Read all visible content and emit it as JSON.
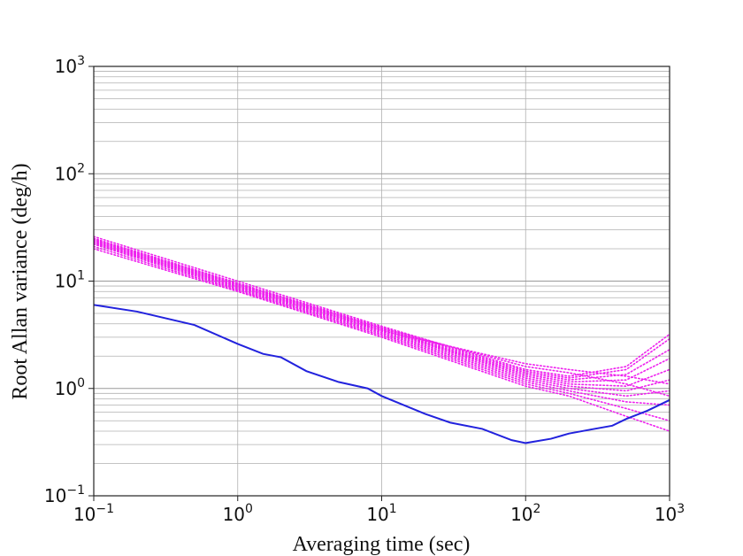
{
  "chart_data": {
    "type": "line",
    "title": "",
    "xlabel": "Averaging time (sec)",
    "ylabel": "Root Allan variance  (deg/h)",
    "xscale": "log",
    "yscale": "log",
    "xlim": [
      0.1,
      1000
    ],
    "ylim": [
      0.1,
      1000
    ],
    "grid": true,
    "legend": "none",
    "x_ticks": [
      {
        "base": "10",
        "exp": "−1",
        "value": 0.1
      },
      {
        "base": "10",
        "exp": "0",
        "value": 1
      },
      {
        "base": "10",
        "exp": "1",
        "value": 10
      },
      {
        "base": "10",
        "exp": "2",
        "value": 100
      },
      {
        "base": "10",
        "exp": "3",
        "value": 1000
      }
    ],
    "y_ticks": [
      {
        "base": "10",
        "exp": "−1",
        "value": 0.1
      },
      {
        "base": "10",
        "exp": "0",
        "value": 1
      },
      {
        "base": "10",
        "exp": "1",
        "value": 10
      },
      {
        "base": "10",
        "exp": "2",
        "value": 100
      },
      {
        "base": "10",
        "exp": "3",
        "value": 1000
      }
    ],
    "colors": {
      "solid": "#2222dd",
      "dotted": "#ee22ee",
      "grid": "#b0b0b0",
      "frame": "#222222"
    },
    "solid_series": {
      "style": "solid",
      "x": [
        0.1,
        0.2,
        0.5,
        1,
        1.5,
        2,
        3,
        5,
        8,
        10,
        20,
        30,
        50,
        80,
        100,
        150,
        200,
        300,
        400,
        500,
        700,
        1000
      ],
      "y": [
        6,
        5.2,
        3.9,
        2.6,
        2.1,
        1.95,
        1.45,
        1.15,
        1.0,
        0.85,
        0.58,
        0.48,
        0.42,
        0.33,
        0.31,
        0.34,
        0.38,
        0.42,
        0.45,
        0.52,
        0.62,
        0.78
      ]
    },
    "dotted_series": [
      {
        "style": "dotted",
        "x": [
          0.1,
          1,
          10,
          100,
          200,
          500,
          1000
        ],
        "y": [
          26,
          10,
          3.8,
          1.5,
          1.3,
          1.6,
          3.2
        ]
      },
      {
        "style": "dotted",
        "x": [
          0.1,
          1,
          10,
          100,
          200,
          500,
          1000
        ],
        "y": [
          25,
          9.6,
          3.7,
          1.45,
          1.25,
          1.5,
          2.9
        ]
      },
      {
        "style": "dotted",
        "x": [
          0.1,
          1,
          10,
          100,
          200,
          500,
          1000
        ],
        "y": [
          24.5,
          9.4,
          3.6,
          1.4,
          1.2,
          1.35,
          2.3
        ]
      },
      {
        "style": "dotted",
        "x": [
          0.1,
          1,
          10,
          100,
          200,
          500,
          1000
        ],
        "y": [
          24,
          9.2,
          3.55,
          1.35,
          1.15,
          1.2,
          1.9
        ]
      },
      {
        "style": "dotted",
        "x": [
          0.1,
          1,
          10,
          100,
          200,
          500,
          1000
        ],
        "y": [
          23.5,
          9.0,
          3.5,
          1.3,
          1.1,
          1.05,
          1.5
        ]
      },
      {
        "style": "dotted",
        "x": [
          0.1,
          1,
          10,
          100,
          200,
          500,
          1000
        ],
        "y": [
          23,
          8.8,
          3.4,
          1.25,
          1.05,
          0.95,
          1.2
        ]
      },
      {
        "style": "dotted",
        "x": [
          0.1,
          1,
          10,
          100,
          200,
          500,
          1000
        ],
        "y": [
          22.5,
          8.6,
          3.3,
          1.2,
          1.0,
          0.85,
          0.95
        ]
      },
      {
        "style": "dotted",
        "x": [
          0.1,
          1,
          10,
          100,
          200,
          500,
          1000
        ],
        "y": [
          22,
          8.4,
          3.2,
          1.15,
          0.95,
          0.75,
          0.7
        ]
      },
      {
        "style": "dotted",
        "x": [
          0.1,
          1,
          10,
          100,
          200,
          500,
          1000
        ],
        "y": [
          21,
          8.2,
          3.1,
          1.1,
          0.9,
          0.65,
          0.5
        ]
      },
      {
        "style": "dotted",
        "x": [
          0.1,
          1,
          10,
          100,
          200,
          500,
          1000
        ],
        "y": [
          20,
          8.0,
          3.0,
          1.05,
          0.85,
          0.55,
          0.4
        ]
      },
      {
        "style": "dotted",
        "x": [
          0.1,
          1,
          10,
          100,
          200,
          500,
          1000
        ],
        "y": [
          24,
          9.3,
          3.65,
          1.6,
          1.4,
          1.1,
          0.85
        ]
      },
      {
        "style": "dotted",
        "x": [
          0.1,
          1,
          10,
          100,
          200,
          500,
          1000
        ],
        "y": [
          23,
          8.9,
          3.45,
          1.7,
          1.5,
          1.3,
          1.1
        ]
      }
    ]
  }
}
